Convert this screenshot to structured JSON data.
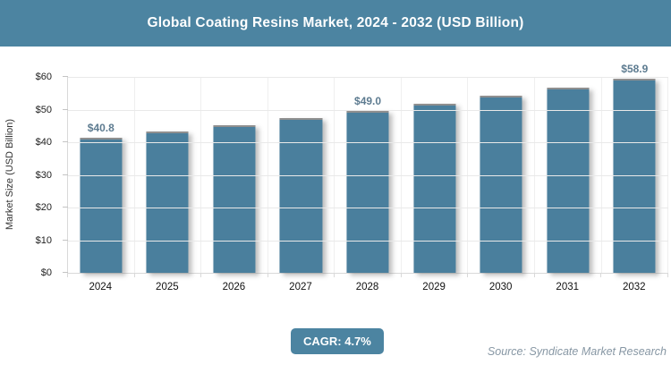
{
  "header": {
    "title": "Global Coating Resins Market, 2024 - 2032 (USD Billion)",
    "bg_color": "#4c84a1",
    "text_color": "#ffffff"
  },
  "chart_data": {
    "type": "bar",
    "title": "Global Coating Resins Market, 2024 - 2032 (USD Billion)",
    "categories": [
      "2024",
      "2025",
      "2026",
      "2027",
      "2028",
      "2029",
      "2030",
      "2031",
      "2032"
    ],
    "values": [
      40.8,
      42.7,
      44.7,
      46.8,
      49.0,
      51.3,
      53.7,
      56.2,
      58.9
    ],
    "data_labels": [
      "$40.8",
      null,
      null,
      null,
      "$49.0",
      null,
      null,
      null,
      "$58.9"
    ],
    "xlabel": "",
    "ylabel": "Market Size (USD Billion)",
    "y_ticks": [
      "$0",
      "$10",
      "$20",
      "$30",
      "$40",
      "$50",
      "$60"
    ],
    "ylim": [
      0,
      60
    ],
    "grid": true,
    "legend": false,
    "bar_color": "#4a7f9d",
    "data_label_color": "#5d7b90"
  },
  "footer": {
    "cagr_label": "CAGR: 4.7%",
    "badge_color": "#4c84a1",
    "source": "Source: Syndicate Market Research"
  }
}
